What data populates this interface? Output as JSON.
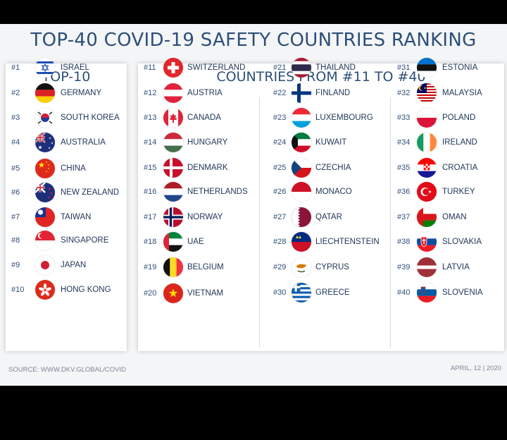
{
  "title": "TOP-40 COVID-19 SAFETY COUNTRIES RANKING",
  "left_heading": "TOP-10",
  "right_heading": "COUNTRIES FROM #11 TO #40",
  "source": "SOURCE: WWW.DKV.GLOBAL/COVID",
  "date": "APRIL, 12 | 2020",
  "columns": [
    [
      {
        "rank": "#1",
        "name": "ISRAEL",
        "flag": "israel-flag-icon"
      },
      {
        "rank": "#2",
        "name": "GERMANY",
        "flag": "germany-flag-icon"
      },
      {
        "rank": "#3",
        "name": "SOUTH KOREA",
        "flag": "south-korea-flag-icon"
      },
      {
        "rank": "#4",
        "name": "AUSTRALIA",
        "flag": "australia-flag-icon"
      },
      {
        "rank": "#5",
        "name": "CHINA",
        "flag": "china-flag-icon"
      },
      {
        "rank": "#6",
        "name": "NEW ZEALAND",
        "flag": "new-zealand-flag-icon"
      },
      {
        "rank": "#7",
        "name": "TAIWAN",
        "flag": "taiwan-flag-icon"
      },
      {
        "rank": "#8",
        "name": "SINGAPORE",
        "flag": "singapore-flag-icon"
      },
      {
        "rank": "#9",
        "name": "JAPAN",
        "flag": "japan-flag-icon"
      },
      {
        "rank": "#10",
        "name": "HONG KONG",
        "flag": "hong-kong-flag-icon"
      }
    ],
    [
      {
        "rank": "#11",
        "name": "SWITZERLAND",
        "flag": "switzerland-flag-icon"
      },
      {
        "rank": "#12",
        "name": "AUSTRIA",
        "flag": "austria-flag-icon"
      },
      {
        "rank": "#13",
        "name": "CANADA",
        "flag": "canada-flag-icon"
      },
      {
        "rank": "#14",
        "name": "HUNGARY",
        "flag": "hungary-flag-icon"
      },
      {
        "rank": "#15",
        "name": "DENMARK",
        "flag": "denmark-flag-icon"
      },
      {
        "rank": "#16",
        "name": "NETHERLANDS",
        "flag": "netherlands-flag-icon"
      },
      {
        "rank": "#17",
        "name": "NORWAY",
        "flag": "norway-flag-icon"
      },
      {
        "rank": "#18",
        "name": "UAE",
        "flag": "uae-flag-icon"
      },
      {
        "rank": "#19",
        "name": "BELGIUM",
        "flag": "belgium-flag-icon"
      },
      {
        "rank": "#20",
        "name": "VIETNAM",
        "flag": "vietnam-flag-icon"
      }
    ],
    [
      {
        "rank": "#21",
        "name": "THAILAND",
        "flag": "thailand-flag-icon"
      },
      {
        "rank": "#22",
        "name": "FINLAND",
        "flag": "finland-flag-icon"
      },
      {
        "rank": "#23",
        "name": "LUXEMBOURG",
        "flag": "luxembourg-flag-icon"
      },
      {
        "rank": "#24",
        "name": "KUWAIT",
        "flag": "kuwait-flag-icon"
      },
      {
        "rank": "#25",
        "name": "CZECHIA",
        "flag": "czechia-flag-icon"
      },
      {
        "rank": "#26",
        "name": "MONACO",
        "flag": "monaco-flag-icon"
      },
      {
        "rank": "#27",
        "name": "QATAR",
        "flag": "qatar-flag-icon"
      },
      {
        "rank": "#28",
        "name": "LIECHTENSTEIN",
        "flag": "liechtenstein-flag-icon"
      },
      {
        "rank": "#29",
        "name": "CYPRUS",
        "flag": "cyprus-flag-icon"
      },
      {
        "rank": "#30",
        "name": "GREECE",
        "flag": "greece-flag-icon"
      }
    ],
    [
      {
        "rank": "#31",
        "name": "ESTONIA",
        "flag": "estonia-flag-icon"
      },
      {
        "rank": "#32",
        "name": "MALAYSIA",
        "flag": "malaysia-flag-icon"
      },
      {
        "rank": "#33",
        "name": "POLAND",
        "flag": "poland-flag-icon"
      },
      {
        "rank": "#34",
        "name": "IRELAND",
        "flag": "ireland-flag-icon"
      },
      {
        "rank": "#35",
        "name": "CROATIA",
        "flag": "croatia-flag-icon"
      },
      {
        "rank": "#36",
        "name": "TURKEY",
        "flag": "turkey-flag-icon"
      },
      {
        "rank": "#37",
        "name": "OMAN",
        "flag": "oman-flag-icon"
      },
      {
        "rank": "#38",
        "name": "SLOVAKIA",
        "flag": "slovakia-flag-icon"
      },
      {
        "rank": "#39",
        "name": "LATVIA",
        "flag": "latvia-flag-icon"
      },
      {
        "rank": "#40",
        "name": "SLOVENIA",
        "flag": "slovenia-flag-icon"
      }
    ]
  ]
}
